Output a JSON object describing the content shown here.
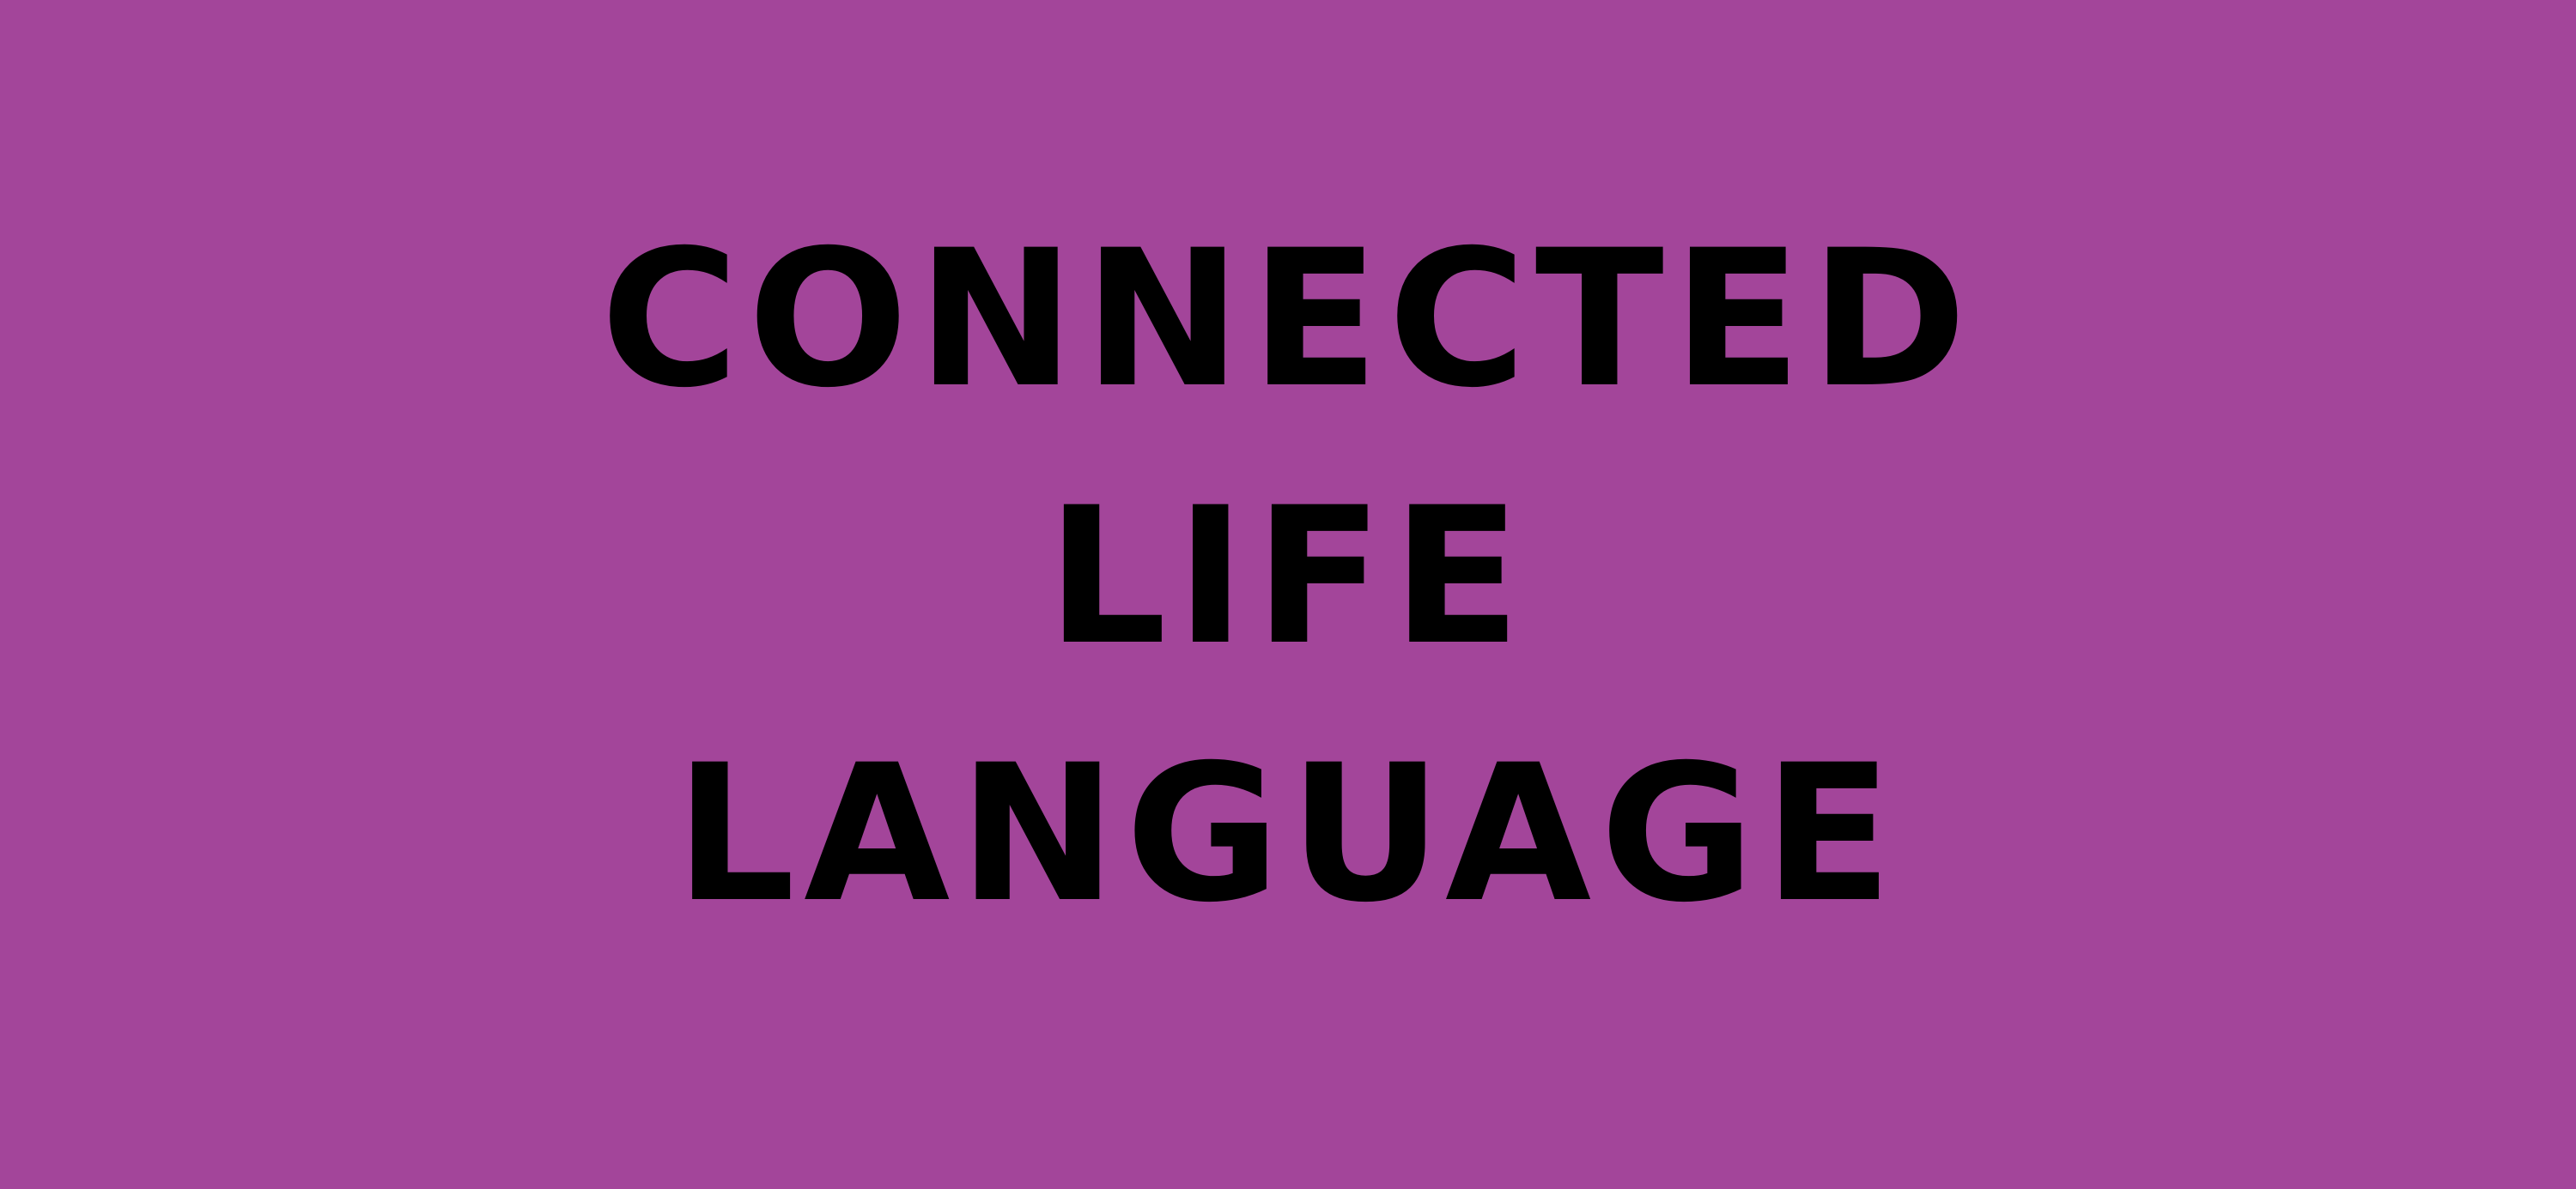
{
  "background_color": "#a3459a",
  "text_color": "#000000",
  "title": {
    "line1": "CONNECTED",
    "line2": "LIFE",
    "line3": "LANGUAGE"
  }
}
